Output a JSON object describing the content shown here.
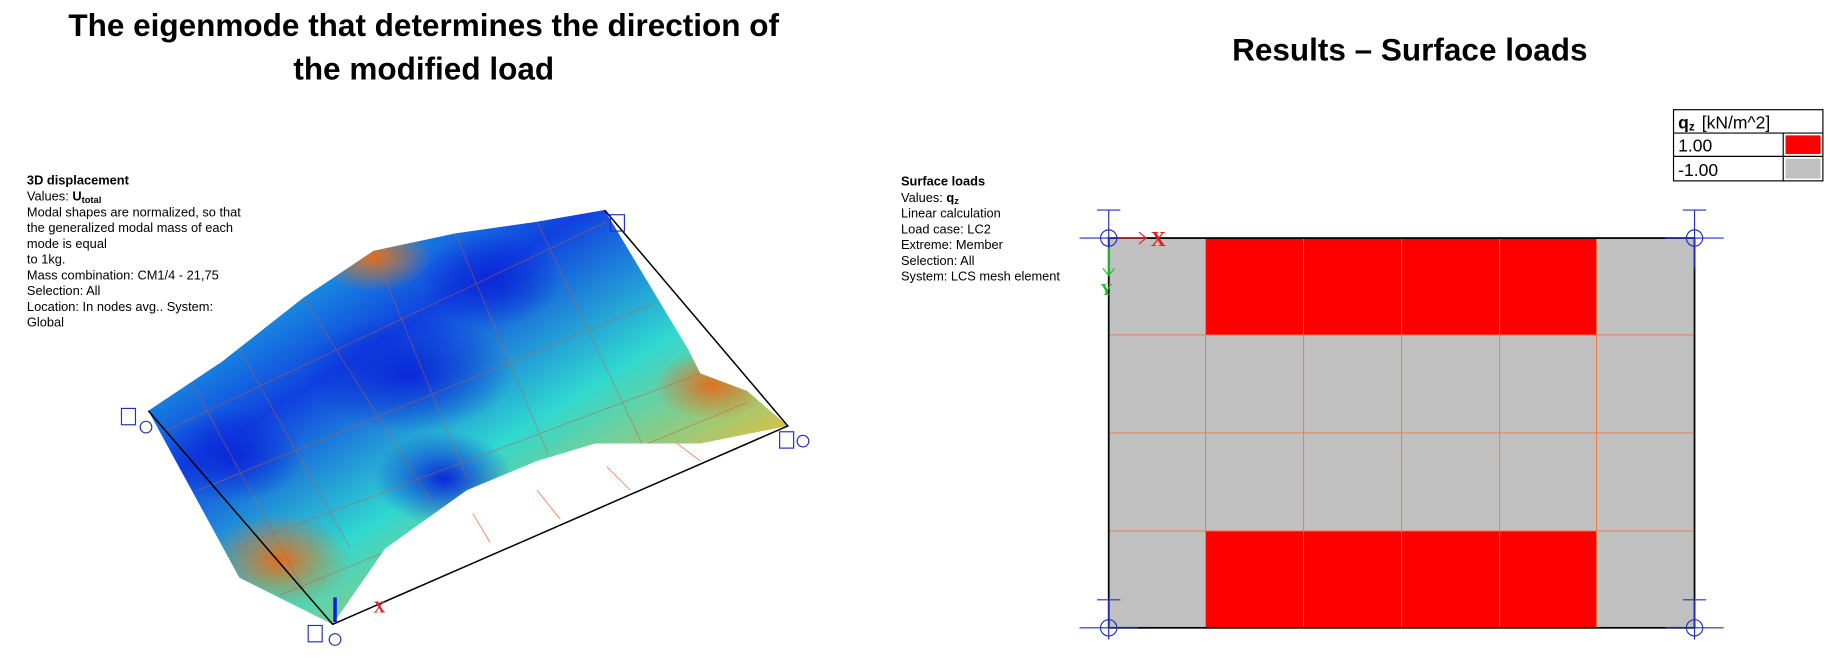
{
  "left": {
    "title_line1": "The eigenmode that determines the direction of",
    "title_line2": "the modified load",
    "info_title": "3D displacement",
    "values_label": "Values:",
    "values_symbol": "U",
    "values_subscript": "total",
    "lines": [
      "Modal shapes are normalized, so that",
      "the generalized modal mass of each",
      "mode is equal",
      "to 1kg.",
      "Mass combination: CM1/4 - 21,75",
      "Selection: All",
      "Location: In nodes avg.. System:",
      "Global"
    ],
    "axis_x": "X"
  },
  "right": {
    "title": "Results – Surface loads",
    "info_title": "Surface loads",
    "values_label": "Values:",
    "values_symbol": "q",
    "values_subscript": "z",
    "lines": [
      "Linear calculation",
      "Load case:  LC2",
      "Extreme: Member",
      "Selection:  All",
      "System: LCS mesh element"
    ],
    "axis_x": "X",
    "axis_y": "Y",
    "legend": {
      "symbol": "q",
      "subscript": "z",
      "unit": "[kN/m^2]",
      "entries": [
        "1.00",
        "-1.00"
      ]
    }
  }
}
